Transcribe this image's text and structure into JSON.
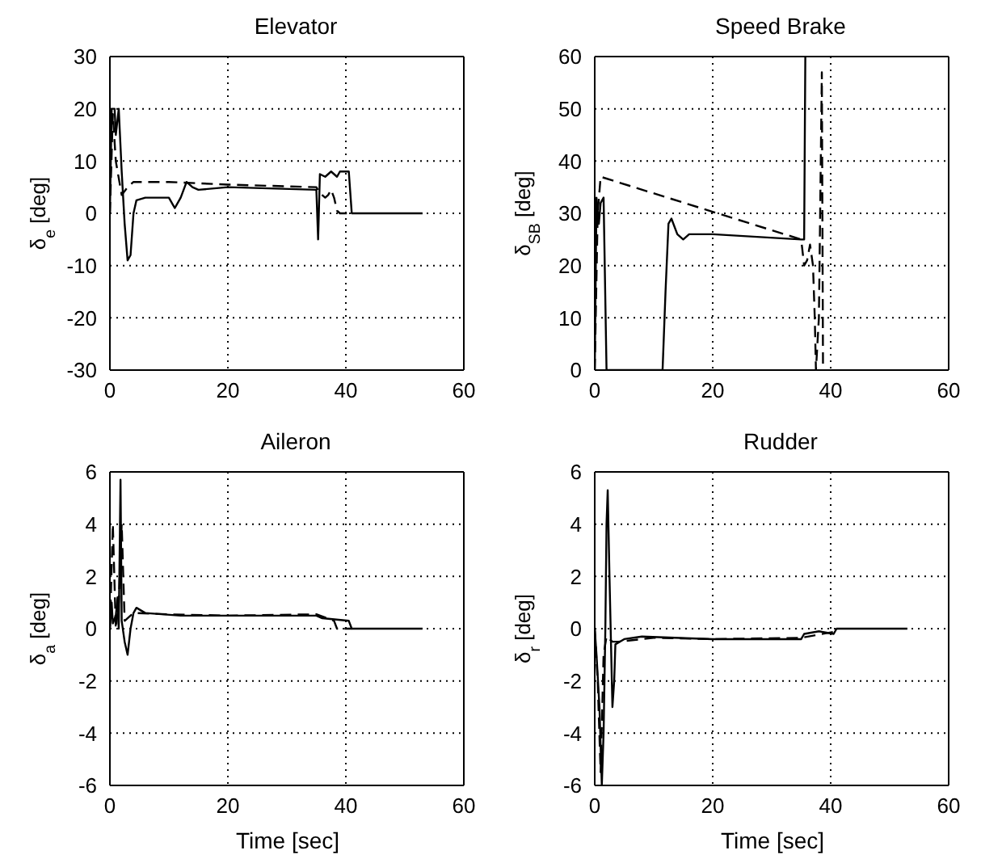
{
  "chart_data": [
    {
      "type": "line",
      "title": "Elevator",
      "ylabel": "δ$_{e}$ [deg]",
      "xlim": [
        0,
        60
      ],
      "xticks": [
        0,
        20,
        40,
        60
      ],
      "ylim": [
        -30,
        30
      ],
      "yticks": [
        -30,
        -20,
        -10,
        0,
        10,
        20,
        30
      ],
      "grid": true,
      "series": [
        {
          "color": "#000000",
          "line_style": "solid",
          "x": [
            0,
            0.3,
            0.8,
            1,
            1.5,
            2,
            2.5,
            3,
            3.5,
            4,
            4.5,
            6,
            10,
            11,
            12,
            13,
            14,
            15,
            20,
            35,
            35.3,
            35.6,
            36.5,
            37.5,
            38.5,
            39,
            40.5,
            41,
            53
          ],
          "values": [
            0,
            20,
            20,
            15,
            20,
            8,
            -2,
            -9,
            -8,
            0,
            2.5,
            3,
            3,
            1,
            3,
            6,
            5,
            4.5,
            5,
            4.5,
            -5,
            7.5,
            7,
            8,
            7,
            8,
            8,
            0,
            0
          ]
        },
        {
          "color": "#000000",
          "line_style": "dashed",
          "x": [
            0,
            0.5,
            1,
            2,
            3,
            4,
            10,
            20,
            35,
            35.5,
            36.5,
            37,
            37.5,
            38,
            38.5,
            39,
            41
          ],
          "values": [
            0,
            19,
            10,
            3.5,
            5,
            6,
            6,
            5.5,
            5,
            4,
            3,
            3.5,
            4.5,
            3,
            0.5,
            0,
            0
          ]
        }
      ]
    },
    {
      "type": "line",
      "title": "Speed Brake",
      "ylabel": "δ$_{SB}$ [deg]",
      "xlim": [
        0,
        60
      ],
      "xticks": [
        0,
        20,
        40,
        60
      ],
      "ylim": [
        0,
        60
      ],
      "yticks": [
        0,
        10,
        20,
        30,
        40,
        50,
        60
      ],
      "grid": true,
      "series": [
        {
          "color": "#000000",
          "line_style": "solid",
          "x": [
            0,
            0.3,
            0.7,
            1,
            1.5,
            2,
            11.5,
            12,
            12.5,
            13,
            14,
            15,
            16,
            20,
            35,
            35.5,
            35.7
          ],
          "values": [
            0,
            33,
            28,
            32,
            33,
            0,
            0,
            15,
            28,
            29,
            26,
            25,
            26,
            26,
            25,
            25,
            60
          ]
        },
        {
          "color": "#000000",
          "line_style": "dashed",
          "x": [
            0,
            0.5,
            1,
            35,
            35.5,
            36,
            36.5,
            37,
            37.3,
            37.5,
            38,
            38.5,
            38.7
          ],
          "values": [
            0,
            30,
            37,
            25,
            20,
            21,
            24,
            20,
            10,
            0,
            10,
            57,
            0
          ]
        }
      ]
    },
    {
      "type": "line",
      "title": "Aileron",
      "ylabel": "δ$_{a}$ [deg]",
      "xlabel": "Time  [sec]",
      "xlim": [
        0,
        60
      ],
      "xticks": [
        0,
        20,
        40,
        60
      ],
      "ylim": [
        -6,
        6
      ],
      "yticks": [
        -6,
        -4,
        -2,
        0,
        2,
        4,
        6
      ],
      "grid": true,
      "series": [
        {
          "color": "#000000",
          "line_style": "solid",
          "x": [
            0,
            0.3,
            0.5,
            1,
            1.3,
            1.5,
            1.8,
            2,
            2.5,
            3,
            3.5,
            4,
            4.5,
            6,
            12,
            20,
            35,
            36,
            40.5,
            41,
            53
          ],
          "values": [
            0,
            1,
            0.2,
            0.5,
            1.2,
            0,
            5.7,
            0.3,
            -0.5,
            -1,
            0,
            0.6,
            0.8,
            0.6,
            0.5,
            0.5,
            0.5,
            0.4,
            0.3,
            0,
            0
          ]
        },
        {
          "color": "#000000",
          "line_style": "dashed",
          "x": [
            0,
            0.5,
            1,
            1.5,
            2,
            2.5,
            4,
            10,
            20,
            35,
            38,
            38.5,
            41
          ],
          "values": [
            0,
            4,
            0,
            1,
            4,
            0.3,
            0.6,
            0.55,
            0.5,
            0.55,
            0.3,
            0,
            0
          ]
        }
      ]
    },
    {
      "type": "line",
      "title": "Rudder",
      "ylabel": "δ$_{r}$ [deg]",
      "xlabel": "Time  [sec]",
      "xlim": [
        0,
        60
      ],
      "xticks": [
        0,
        20,
        40,
        60
      ],
      "ylim": [
        -6,
        6
      ],
      "yticks": [
        -6,
        -4,
        -2,
        0,
        2,
        4,
        6
      ],
      "grid": true,
      "series": [
        {
          "color": "#000000",
          "line_style": "solid",
          "x": [
            0,
            0.3,
            0.8,
            1.2,
            1.5,
            1.8,
            2,
            2.2,
            2.5,
            3,
            3.3,
            3.5,
            5,
            8,
            20,
            35,
            35.5,
            38,
            40.5,
            41,
            53
          ],
          "values": [
            0,
            -1,
            -3,
            -6,
            -4,
            0,
            4,
            5.3,
            2,
            -3,
            -2,
            -0.6,
            -0.4,
            -0.3,
            -0.4,
            -0.4,
            -0.2,
            -0.1,
            -0.2,
            0,
            0
          ]
        },
        {
          "color": "#000000",
          "line_style": "dashed",
          "x": [
            0,
            0.5,
            1,
            1.5,
            2,
            3,
            4,
            10,
            20,
            35,
            41
          ],
          "values": [
            0,
            -2,
            -5.5,
            -1,
            -0.3,
            -0.5,
            -0.5,
            -0.35,
            -0.4,
            -0.35,
            -0.1
          ]
        }
      ]
    }
  ]
}
